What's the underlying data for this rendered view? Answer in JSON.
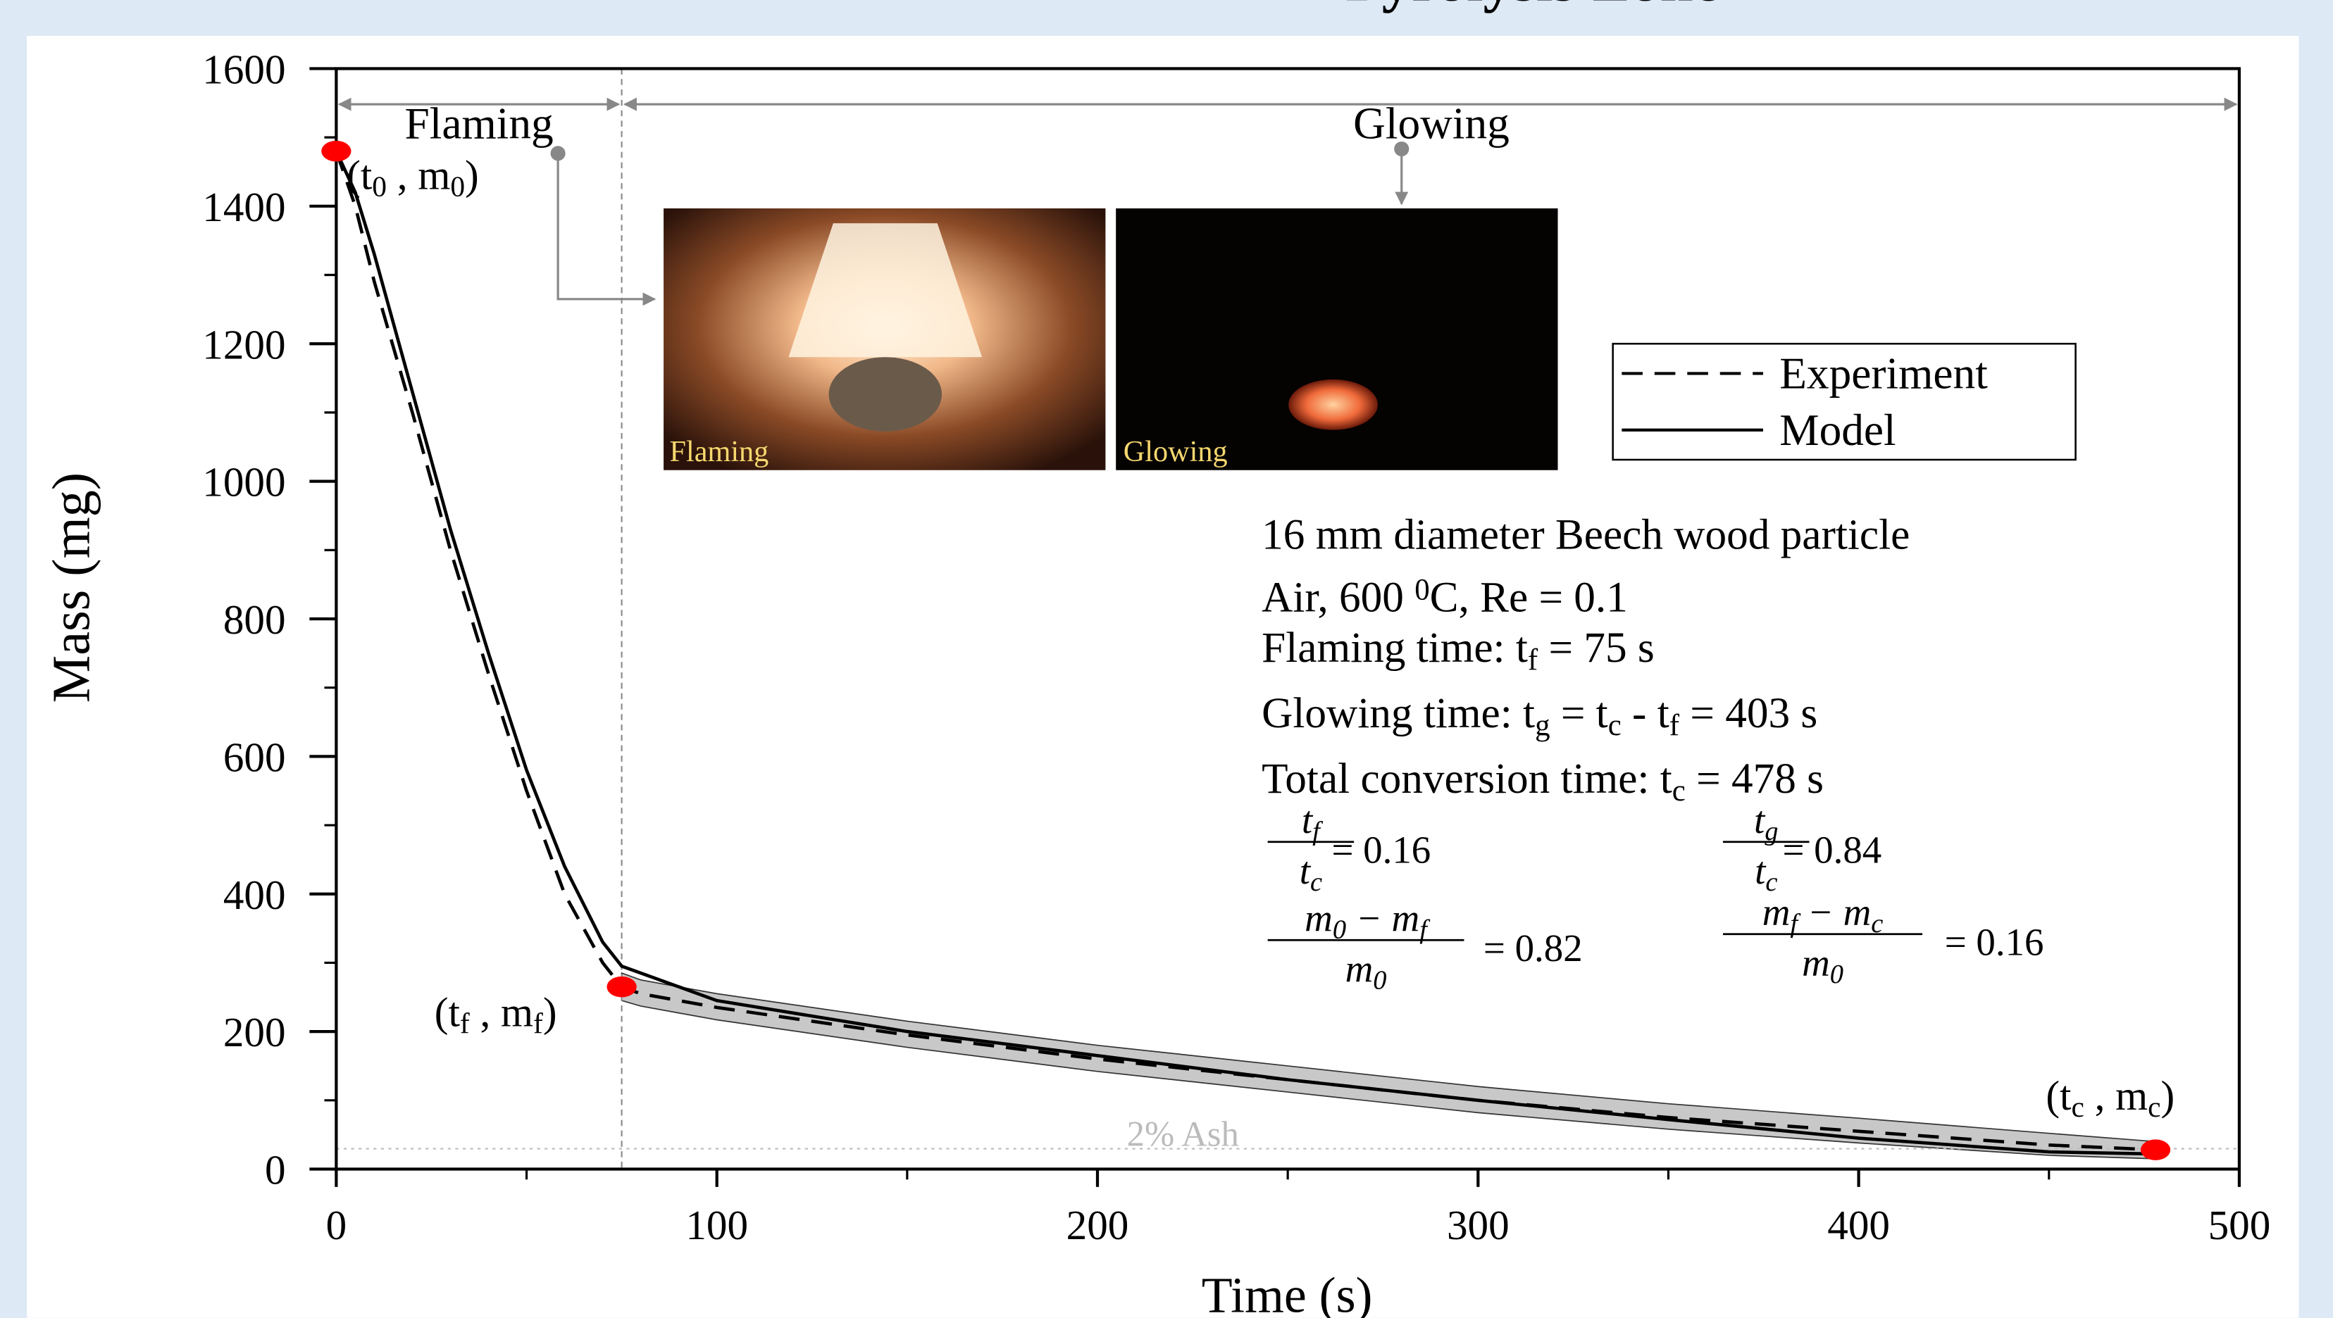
{
  "chart_data": {
    "type": "line",
    "title": "Pyrolysis Zone",
    "xlabel": "Time (s)",
    "ylabel": "Mass (mg)",
    "xlim": [
      0,
      500
    ],
    "ylim": [
      0,
      1600
    ],
    "xticks": [
      0,
      100,
      200,
      300,
      400,
      500
    ],
    "yticks": [
      0,
      200,
      400,
      600,
      800,
      1000,
      1200,
      1400,
      1600
    ],
    "xticks_minor": [
      50,
      150,
      250,
      350,
      450
    ],
    "yticks_minor": [
      100,
      300,
      500,
      700,
      900,
      1100,
      1300,
      1500
    ],
    "x": [
      0,
      5,
      10,
      20,
      30,
      40,
      50,
      60,
      70,
      75,
      80,
      90,
      100,
      150,
      200,
      250,
      300,
      350,
      400,
      450,
      478
    ],
    "series": [
      {
        "name": "Experiment",
        "color": "#000000",
        "dash": true,
        "values": [
          1480,
          1400,
          1290,
          1100,
          900,
          720,
          550,
          400,
          300,
          265,
          255,
          245,
          235,
          195,
          160,
          130,
          100,
          75,
          55,
          35,
          28
        ]
      },
      {
        "name": "Model",
        "color": "#000000",
        "dash": false,
        "values": [
          1480,
          1420,
          1330,
          1130,
          930,
          750,
          580,
          440,
          330,
          295,
          285,
          265,
          245,
          200,
          165,
          130,
          100,
          72,
          45,
          25,
          22
        ]
      }
    ],
    "band": {
      "color": "#c8c8c8",
      "lower": [
        null,
        null,
        null,
        null,
        null,
        null,
        null,
        null,
        null,
        245,
        237,
        227,
        217,
        177,
        142,
        112,
        82,
        58,
        38,
        20,
        15
      ],
      "upper": [
        null,
        null,
        null,
        null,
        null,
        null,
        null,
        null,
        null,
        285,
        275,
        265,
        255,
        215,
        180,
        150,
        120,
        95,
        74,
        52,
        40
      ]
    },
    "flaming_end": 75,
    "ash_level": 29.6,
    "ash_label": "2% Ash",
    "phases": [
      "Flaming",
      "Glowing"
    ],
    "insets": [
      "Flaming",
      "Glowing"
    ],
    "points": [
      {
        "x": 0,
        "y": 1480,
        "label": [
          "(t",
          {
            "sub": "0"
          },
          " , m",
          {
            "sub": "0"
          },
          ")"
        ]
      },
      {
        "x": 75,
        "y": 265,
        "label": [
          "(t",
          {
            "sub": "f"
          },
          " , m",
          {
            "sub": "f"
          },
          ")"
        ]
      },
      {
        "x": 478,
        "y": 28,
        "label": [
          "(t",
          {
            "sub": "c"
          },
          " , m",
          {
            "sub": "c"
          },
          ")"
        ]
      }
    ],
    "point_color": "#ff0000",
    "info_lines": [
      [
        "16 mm diameter Beech wood particle"
      ],
      [
        "Air, 600 ",
        {
          "sup": "0"
        },
        "C, Re = 0.1"
      ],
      [
        "Flaming time: t",
        {
          "sub": "f"
        },
        " = 75 s"
      ],
      [
        "Glowing time: t",
        {
          "sub": "g"
        },
        " = t",
        {
          "sub": "c"
        },
        " - t",
        {
          "sub": "f"
        },
        " = 403 s"
      ],
      [
        "Total conversion time: t",
        {
          "sub": "c"
        },
        " = 478 s"
      ]
    ],
    "ratios": [
      {
        "num": [
          "t",
          {
            "sub": "f"
          }
        ],
        "den": [
          "t",
          {
            "sub": "c"
          }
        ],
        "value": "= 0.16"
      },
      {
        "num": [
          "t",
          {
            "sub": "g"
          }
        ],
        "den": [
          "t",
          {
            "sub": "c"
          }
        ],
        "value": "= 0.84"
      },
      {
        "num": [
          "m",
          {
            "sub": "0"
          },
          " − m",
          {
            "sub": "f"
          }
        ],
        "den": [
          "m",
          {
            "sub": "0"
          }
        ],
        "value": "= 0.82"
      },
      {
        "num": [
          "m",
          {
            "sub": "f"
          },
          " − m",
          {
            "sub": "c"
          }
        ],
        "den": [
          "m",
          {
            "sub": "0"
          }
        ],
        "value": "= 0.16"
      }
    ]
  }
}
